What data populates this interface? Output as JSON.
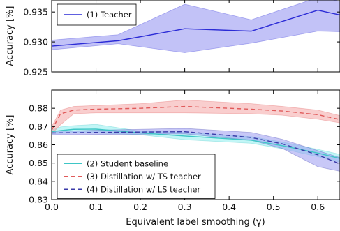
{
  "chart_data": [
    {
      "type": "line",
      "ylabel": "Accuracy [%]",
      "xlim": [
        0.0,
        0.65
      ],
      "ylim": [
        0.925,
        0.937
      ],
      "yticks": [
        "0.925",
        "0.930",
        "0.935"
      ],
      "grid": false,
      "legend_position": "top-left",
      "x": [
        0.0,
        0.15,
        0.3,
        0.45,
        0.6,
        0.65
      ],
      "series": [
        {
          "name": "(1) Teacher",
          "color": "#2b2bd6",
          "band_color": "#8f8ff0",
          "style": "solid",
          "values": [
            0.9293,
            0.9302,
            0.9322,
            0.9318,
            0.9353,
            0.9345
          ],
          "lower": [
            0.9287,
            0.9297,
            0.9282,
            0.9298,
            0.9318,
            0.9317
          ],
          "upper": [
            0.9303,
            0.9312,
            0.9363,
            0.9337,
            0.9374,
            0.9368
          ]
        }
      ]
    },
    {
      "type": "line",
      "xlabel": "Equivalent label smoothing (γ)",
      "ylabel": "Accuracy [%]",
      "xlim": [
        0.0,
        0.65
      ],
      "ylim": [
        0.83,
        0.89
      ],
      "xticks": [
        "0.0",
        "0.1",
        "0.2",
        "0.3",
        "0.4",
        "0.5",
        "0.6"
      ],
      "yticks": [
        "0.83",
        "0.84",
        "0.85",
        "0.86",
        "0.87",
        "0.88"
      ],
      "grid": false,
      "legend_position": "bottom-left",
      "x": [
        0.0,
        0.02,
        0.05,
        0.1,
        0.2,
        0.3,
        0.45,
        0.52,
        0.6,
        0.65
      ],
      "series": [
        {
          "name": "(2) Student baseline",
          "color": "#3ec6c6",
          "band_color": "#8fefef",
          "style": "solid",
          "values": [
            0.8672,
            0.8678,
            0.8685,
            0.8686,
            0.8665,
            0.8648,
            0.8625,
            0.8595,
            0.8555,
            0.8525
          ],
          "lower": [
            0.8662,
            0.8663,
            0.8665,
            0.8665,
            0.8655,
            0.8628,
            0.8608,
            0.8578,
            0.8535,
            0.8505
          ],
          "upper": [
            0.8682,
            0.8698,
            0.8705,
            0.8712,
            0.8675,
            0.8668,
            0.8645,
            0.8615,
            0.8575,
            0.8548
          ]
        },
        {
          "name": "(3) Distillation w/ TS teacher",
          "color": "#e05a5a",
          "band_color": "#f4a5a5",
          "style": "dashed",
          "values": [
            0.868,
            0.877,
            0.879,
            0.8795,
            0.88,
            0.881,
            0.8795,
            0.8785,
            0.8765,
            0.8738
          ],
          "lower": [
            0.866,
            0.871,
            0.877,
            0.8775,
            0.8775,
            0.8775,
            0.877,
            0.8762,
            0.874,
            0.872
          ],
          "upper": [
            0.87,
            0.879,
            0.881,
            0.8815,
            0.8825,
            0.8845,
            0.8825,
            0.881,
            0.879,
            0.876
          ]
        },
        {
          "name": "(4) Distillation w/ LS teacher",
          "color": "#3a3aa8",
          "band_color": "#9a9af0",
          "style": "dashed",
          "values": [
            0.8665,
            0.8666,
            0.8667,
            0.8668,
            0.867,
            0.8672,
            0.864,
            0.8605,
            0.8545,
            0.8495
          ],
          "lower": [
            0.8655,
            0.8656,
            0.8656,
            0.8657,
            0.8658,
            0.866,
            0.8625,
            0.858,
            0.848,
            0.8455
          ],
          "upper": [
            0.8675,
            0.8676,
            0.8677,
            0.868,
            0.8685,
            0.869,
            0.8668,
            0.863,
            0.8568,
            0.853
          ]
        }
      ]
    }
  ]
}
